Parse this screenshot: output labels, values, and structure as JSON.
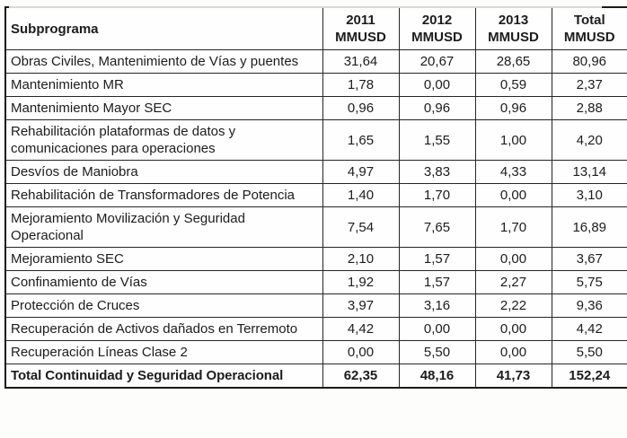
{
  "table": {
    "header": {
      "col0": "Subprograma",
      "col1": "2011\nMMUSD",
      "col2": "2012\nMMUSD",
      "col3": "2013\nMMUSD",
      "col4": "Total\nMMUSD"
    },
    "rows": [
      {
        "label": "Obras Civiles, Mantenimiento de Vías y puentes",
        "values": [
          "31,64",
          "20,67",
          "28,65",
          "80,96"
        ]
      },
      {
        "label": "Mantenimiento MR",
        "values": [
          "1,78",
          "0,00",
          "0,59",
          "2,37"
        ]
      },
      {
        "label": "Mantenimiento Mayor SEC",
        "values": [
          "0,96",
          "0,96",
          "0,96",
          "2,88"
        ]
      },
      {
        "label": "Rehabilitación plataformas de datos y comunicaciones para operaciones",
        "values": [
          "1,65",
          "1,55",
          "1,00",
          "4,20"
        ]
      },
      {
        "label": "Desvíos de Maniobra",
        "values": [
          "4,97",
          "3,83",
          "4,33",
          "13,14"
        ]
      },
      {
        "label": "Rehabilitación de Transformadores de Potencia",
        "values": [
          "1,40",
          "1,70",
          "0,00",
          "3,10"
        ]
      },
      {
        "label": "Mejoramiento Movilización y Seguridad Operacional",
        "values": [
          "7,54",
          "7,65",
          "1,70",
          "16,89"
        ]
      },
      {
        "label": "Mejoramiento SEC",
        "values": [
          "2,10",
          "1,57",
          "0,00",
          "3,67"
        ]
      },
      {
        "label": "Confinamiento de Vías",
        "values": [
          "1,92",
          "1,57",
          "2,27",
          "5,75"
        ]
      },
      {
        "label": "Protección de Cruces",
        "values": [
          "3,97",
          "3,16",
          "2,22",
          "9,36"
        ]
      },
      {
        "label": "Recuperación de Activos dañados en Terremoto",
        "values": [
          "4,42",
          "0,00",
          "0,00",
          "4,42"
        ]
      },
      {
        "label": "Recuperación Líneas Clase 2",
        "values": [
          "0,00",
          "5,50",
          "0,00",
          "5,50"
        ]
      }
    ],
    "total": {
      "label": "Total Continuidad y Seguridad Operacional",
      "values": [
        "62,35",
        "48,16",
        "41,73",
        "152,24"
      ]
    }
  }
}
